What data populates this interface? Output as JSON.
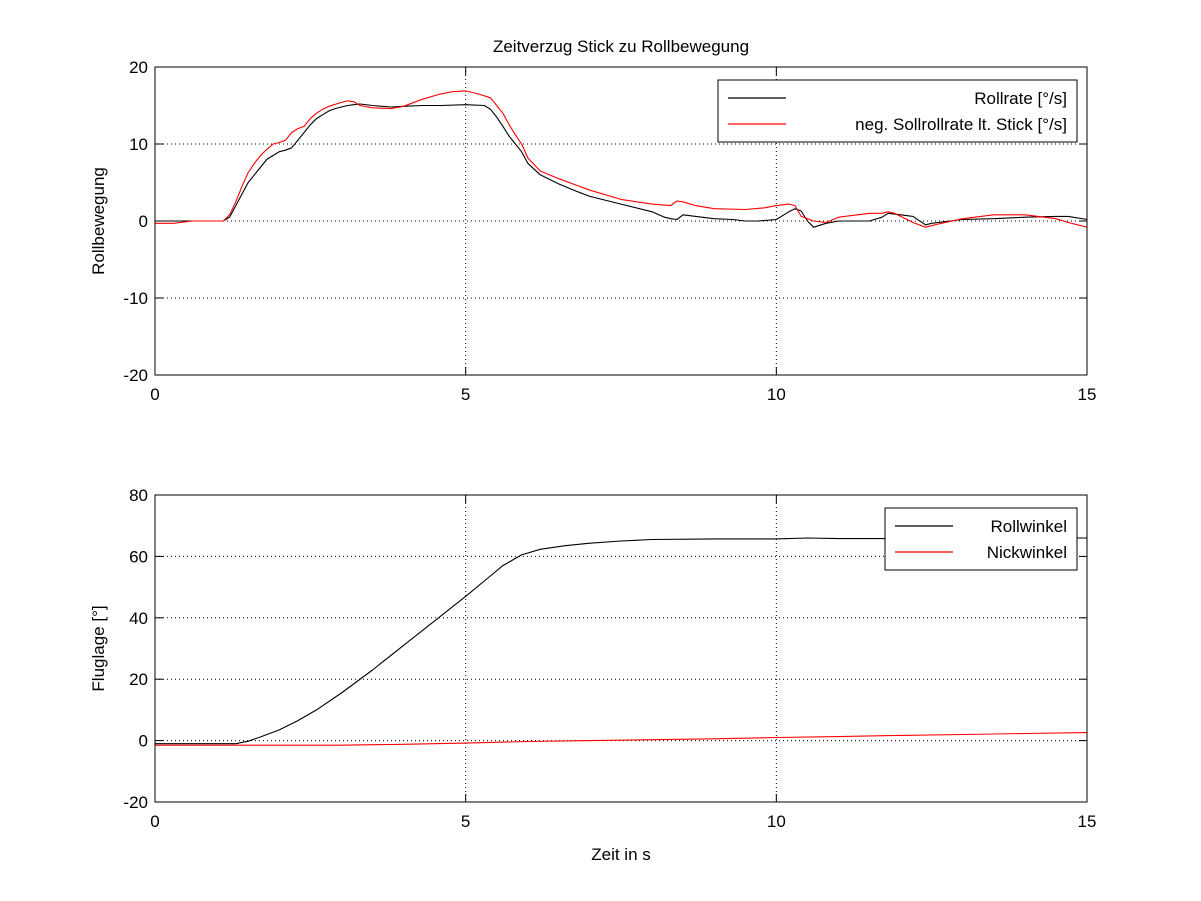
{
  "chart_data": [
    {
      "type": "line",
      "title": "Zeitverzug Stick zu Rollbewegung",
      "xlabel": "",
      "ylabel": "Rollbewegung",
      "xlim": [
        0,
        15
      ],
      "ylim": [
        -20,
        20
      ],
      "xticks": [
        "0",
        "5",
        "10",
        "15"
      ],
      "yticks": [
        "-20",
        "-10",
        "0",
        "10",
        "20"
      ],
      "grid": true,
      "legend": "top-right",
      "series": [
        {
          "name": "Rollrate [°/s]",
          "color": "#000000",
          "x": [
            0,
            0.3,
            0.6,
            0.9,
            1.1,
            1.2,
            1.3,
            1.4,
            1.5,
            1.6,
            1.7,
            1.8,
            1.9,
            2.0,
            2.1,
            2.2,
            2.3,
            2.4,
            2.5,
            2.6,
            2.7,
            2.8,
            2.9,
            3.0,
            3.1,
            3.2,
            3.3,
            3.5,
            3.8,
            4.0,
            4.3,
            4.6,
            5.0,
            5.3,
            5.4,
            5.5,
            5.6,
            5.7,
            5.8,
            5.9,
            6.0,
            6.2,
            6.5,
            6.8,
            7.0,
            7.5,
            8.0,
            8.2,
            8.3,
            8.4,
            8.5,
            8.8,
            9.0,
            9.3,
            9.5,
            9.7,
            10.0,
            10.2,
            10.3,
            10.4,
            10.5,
            10.6,
            10.8,
            11.0,
            11.5,
            11.7,
            11.8,
            11.9,
            12.0,
            12.2,
            12.4,
            12.5,
            12.8,
            13.0,
            13.5,
            14.0,
            14.5,
            14.7,
            15.0
          ],
          "y": [
            0,
            0,
            0,
            0,
            0,
            0.5,
            2,
            3.5,
            5,
            6,
            7,
            8,
            8.5,
            9,
            9.2,
            9.5,
            10.5,
            11.5,
            12.5,
            13.3,
            13.8,
            14.3,
            14.6,
            14.8,
            15,
            15.1,
            15.2,
            15,
            14.8,
            14.9,
            15,
            15,
            15.1,
            15,
            14.5,
            13.5,
            12.3,
            11,
            10,
            9,
            7.5,
            6,
            4.8,
            3.8,
            3.2,
            2.2,
            1.2,
            0.5,
            0.3,
            0.2,
            0.8,
            0.5,
            0.3,
            0.2,
            0,
            0,
            0.2,
            1.2,
            1.6,
            1.3,
            0,
            -0.8,
            -0.3,
            0,
            0,
            0.5,
            1,
            0.9,
            0.8,
            0.6,
            -0.5,
            -0.3,
            0,
            0.2,
            0.3,
            0.5,
            0.6,
            0.6,
            0.2
          ]
        },
        {
          "name": "neg. Sollrollrate lt. Stick [°/s]",
          "color": "#ff0000",
          "x": [
            0,
            0.3,
            0.6,
            0.9,
            1.1,
            1.2,
            1.3,
            1.4,
            1.5,
            1.6,
            1.7,
            1.8,
            1.9,
            2.0,
            2.1,
            2.2,
            2.3,
            2.4,
            2.5,
            2.6,
            2.7,
            2.8,
            3.0,
            3.1,
            3.2,
            3.3,
            3.5,
            3.8,
            4.0,
            4.3,
            4.6,
            4.8,
            5.0,
            5.2,
            5.4,
            5.5,
            5.6,
            5.7,
            5.8,
            5.9,
            6.0,
            6.2,
            6.5,
            6.8,
            7.0,
            7.5,
            8.0,
            8.3,
            8.4,
            8.5,
            8.7,
            9.0,
            9.5,
            9.8,
            10.0,
            10.2,
            10.3,
            10.4,
            10.6,
            10.8,
            11.0,
            11.5,
            11.7,
            11.8,
            11.9,
            12.0,
            12.2,
            12.4,
            12.6,
            13.0,
            13.5,
            14.0,
            14.5,
            14.7,
            15.0
          ],
          "y": [
            -0.3,
            -0.3,
            0,
            0,
            0,
            0.8,
            2.5,
            4.5,
            6.3,
            7.5,
            8.5,
            9.3,
            10,
            10.2,
            10.5,
            11.5,
            12,
            12.3,
            13.3,
            14,
            14.5,
            14.9,
            15.4,
            15.6,
            15.5,
            15,
            14.7,
            14.6,
            14.9,
            15.8,
            16.5,
            16.8,
            16.9,
            16.5,
            16,
            15,
            14,
            12.5,
            11.2,
            10,
            8.2,
            6.5,
            5.5,
            4.6,
            4,
            2.8,
            2.2,
            2,
            2.6,
            2.5,
            2,
            1.6,
            1.5,
            1.7,
            2,
            2.2,
            2.0,
            0.6,
            0,
            -0.2,
            0.5,
            1,
            1,
            1.2,
            1,
            0.6,
            -0.2,
            -0.8,
            -0.4,
            0.3,
            0.8,
            0.8,
            0.3,
            -0.2,
            -0.8
          ]
        }
      ]
    },
    {
      "type": "line",
      "title": "",
      "xlabel": "Zeit in s",
      "ylabel": "Fluglage [°]",
      "xlim": [
        0,
        15
      ],
      "ylim": [
        -20,
        80
      ],
      "xticks": [
        "0",
        "5",
        "10",
        "15"
      ],
      "yticks": [
        "-20",
        "0",
        "20",
        "40",
        "60",
        "80"
      ],
      "grid": true,
      "legend": "top-right",
      "series": [
        {
          "name": "Rollwinkel",
          "color": "#000000",
          "x": [
            0,
            0.5,
            1.0,
            1.3,
            1.5,
            1.7,
            2.0,
            2.3,
            2.6,
            3.0,
            3.5,
            4.0,
            4.5,
            5.0,
            5.3,
            5.6,
            5.9,
            6.2,
            6.6,
            7.0,
            7.5,
            8.0,
            9.0,
            10.0,
            10.5,
            11.0,
            12.0,
            13.0,
            14.0,
            15.0
          ],
          "y": [
            -1,
            -1,
            -1,
            -1,
            -0.2,
            1.2,
            3.5,
            6.5,
            10,
            15.5,
            23,
            31,
            39,
            47,
            52,
            57,
            60.5,
            62.3,
            63.5,
            64.3,
            65,
            65.5,
            65.7,
            65.7,
            66,
            65.8,
            65.8,
            65.9,
            66,
            66
          ]
        },
        {
          "name": "Nickwinkel",
          "color": "#ff0000",
          "x": [
            0,
            1,
            2,
            3,
            4,
            5,
            6,
            7,
            8,
            9,
            10,
            11,
            12,
            13,
            14,
            15
          ],
          "y": [
            -1.5,
            -1.5,
            -1.5,
            -1.5,
            -1.2,
            -0.8,
            -0.3,
            0,
            0.3,
            0.6,
            1,
            1.3,
            1.7,
            2,
            2.3,
            2.6
          ]
        }
      ]
    }
  ]
}
